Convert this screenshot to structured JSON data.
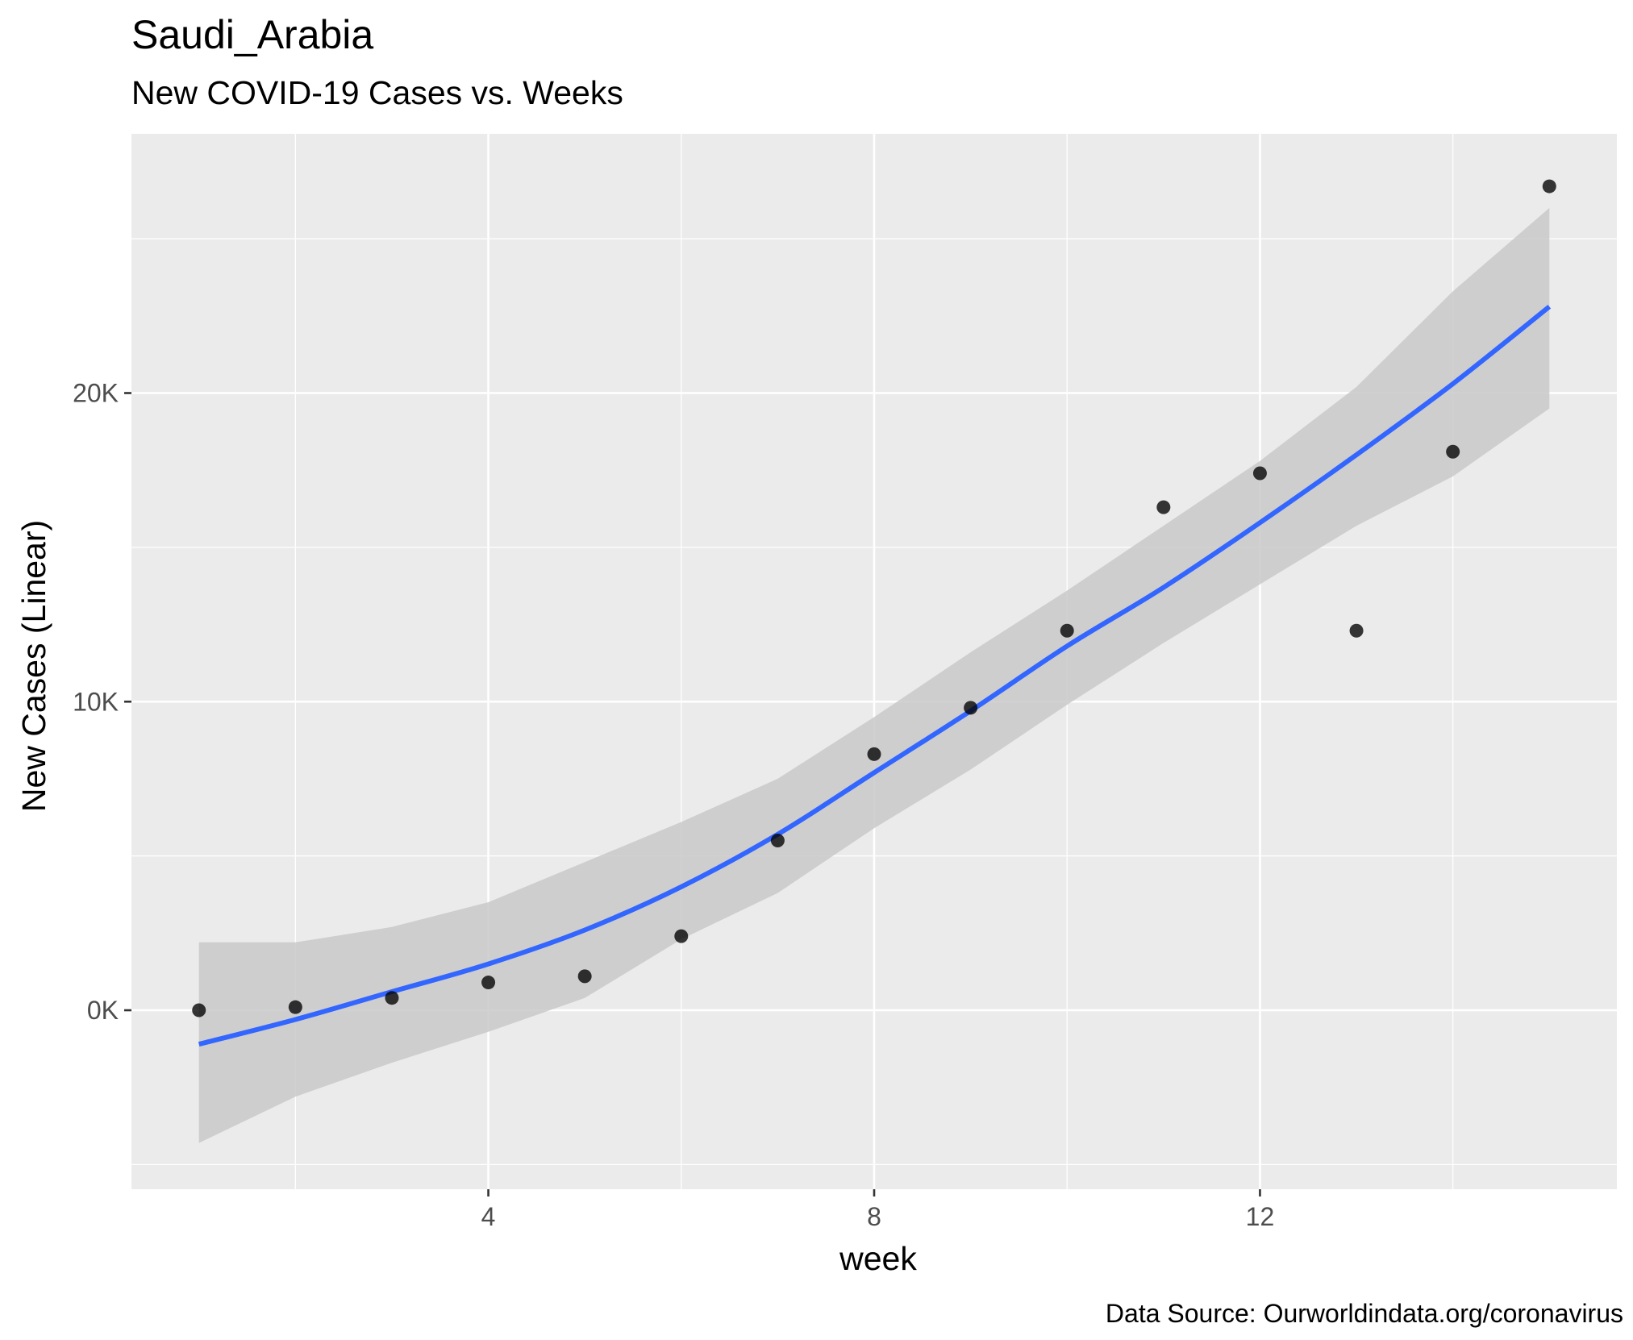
{
  "chart_data": {
    "type": "scatter",
    "title": "Saudi_Arabia",
    "subtitle": "New COVID-19 Cases vs. Weeks",
    "xlabel": "week",
    "ylabel": "New Cases (Linear)",
    "caption": "Data Source: Ourworldindata.org/coronavirus",
    "xlim": [
      0.3,
      15.7
    ],
    "ylim": [
      -5800,
      28400
    ],
    "x_ticks": [
      4,
      8,
      12
    ],
    "x_tick_labels": [
      "4",
      "8",
      "12"
    ],
    "x_minor_ticks": [
      2,
      6,
      10,
      14
    ],
    "y_ticks": [
      0,
      10000,
      20000
    ],
    "y_tick_labels": [
      "0K",
      "10K",
      "20K"
    ],
    "y_minor_ticks": [
      -5000,
      5000,
      15000,
      25000
    ],
    "grid": true,
    "colors": {
      "panel": "#ebebeb",
      "grid": "#ffffff",
      "points": "#000000",
      "fit_line": "#3366ff",
      "ribbon": "#c9c9c9"
    },
    "series": [
      {
        "type": "scatter",
        "x": [
          1,
          2,
          3,
          4,
          5,
          6,
          7,
          8,
          9,
          10,
          11,
          12,
          13,
          14,
          15
        ],
        "y": [
          0,
          100,
          400,
          900,
          1100,
          2400,
          5500,
          8300,
          9800,
          12300,
          16300,
          17400,
          12300,
          18100,
          26700
        ]
      },
      {
        "type": "smooth-fit",
        "x": [
          1,
          2,
          3,
          4,
          5,
          6,
          7,
          8,
          9,
          10,
          11,
          12,
          13,
          14,
          15
        ],
        "y": [
          -1100,
          -300,
          600,
          1500,
          2600,
          4000,
          5700,
          7700,
          9700,
          11800,
          13700,
          15800,
          18000,
          20300,
          22800
        ],
        "lower": [
          -4300,
          -2800,
          -1700,
          -700,
          400,
          2300,
          3800,
          5900,
          7800,
          9900,
          11900,
          13800,
          15700,
          17300,
          19500
        ],
        "upper": [
          2200,
          2200,
          2700,
          3500,
          4800,
          6100,
          7500,
          9500,
          11600,
          13600,
          15700,
          17800,
          20200,
          23300,
          26000
        ]
      }
    ]
  }
}
